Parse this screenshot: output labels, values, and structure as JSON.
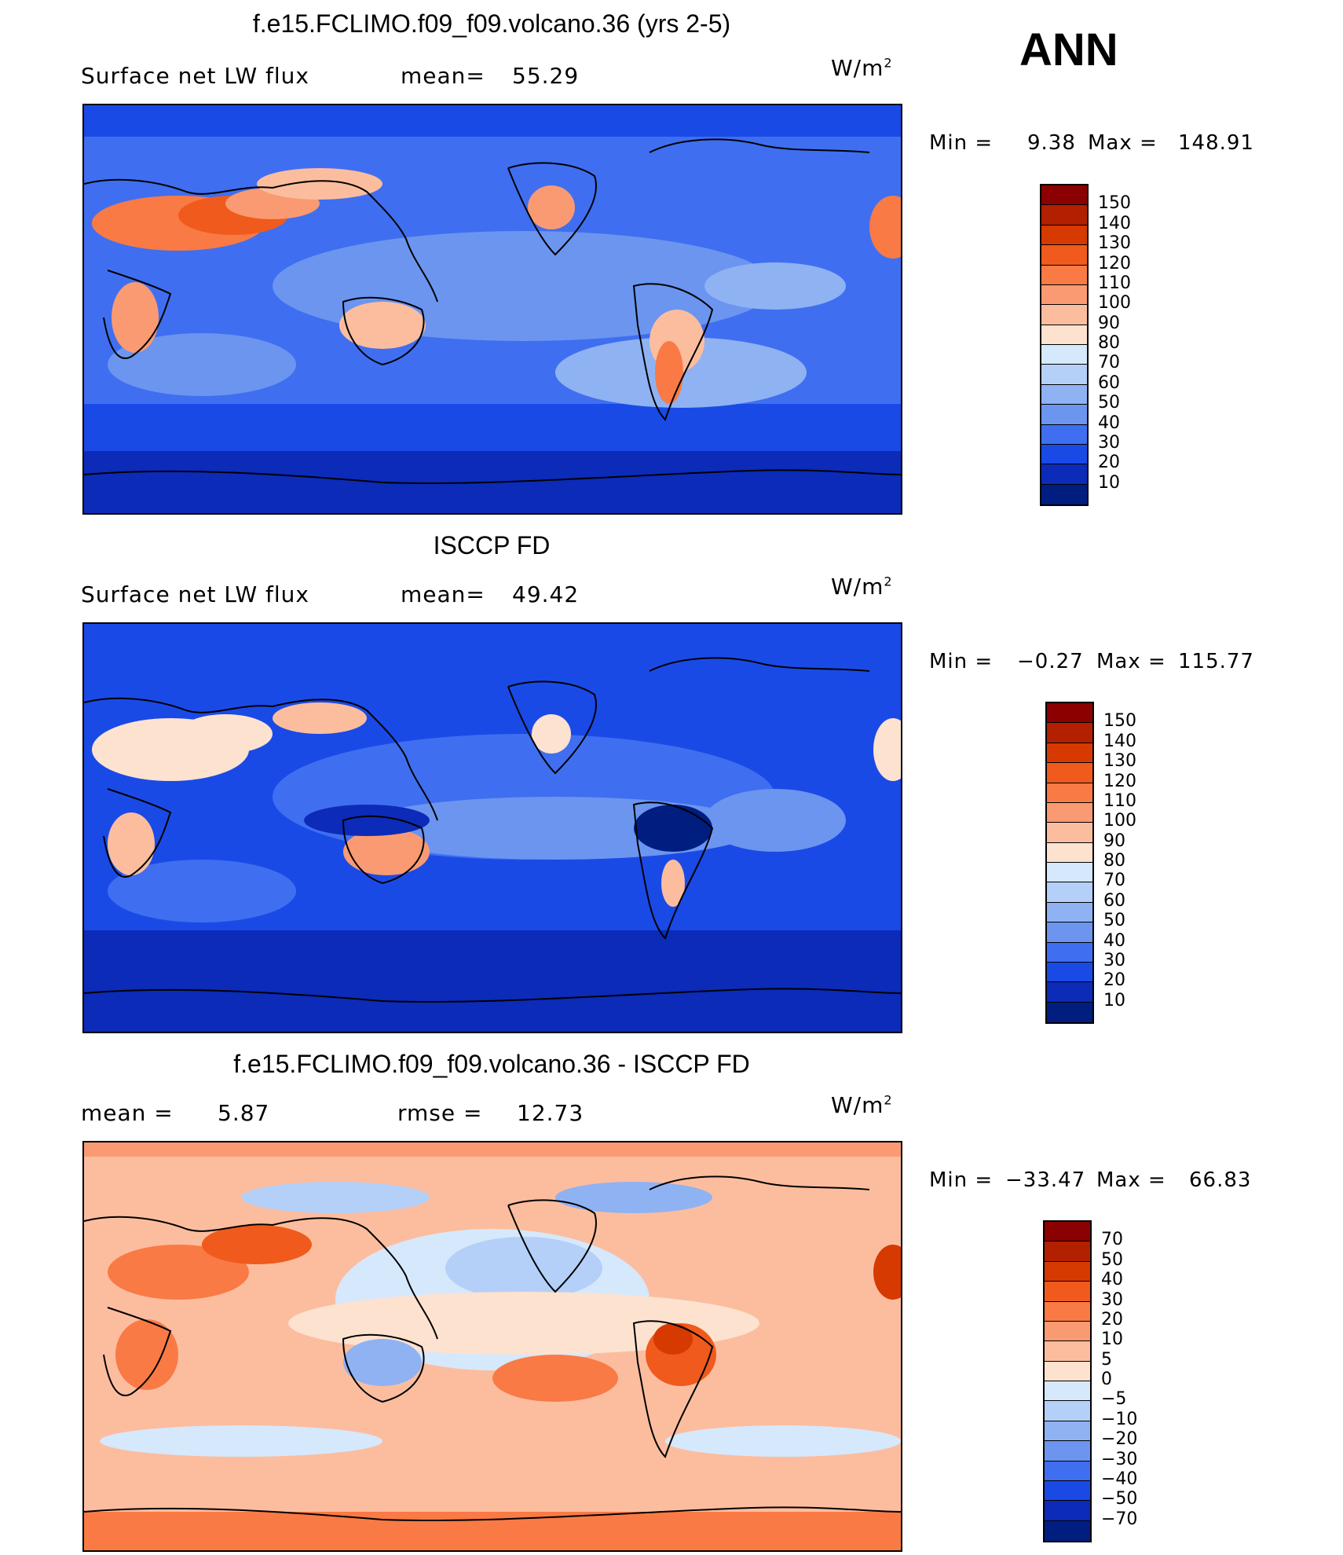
{
  "season": "ANN",
  "panels": [
    {
      "title": "f.e15.FCLIMO.f09_f09.volcano.36 (yrs 2-5)",
      "left_label": "Surface net LW flux",
      "mid_label": "mean=",
      "mid_value": "55.29",
      "unit": "W/m",
      "unit_exp": "2",
      "minmax": {
        "min_label": "Min =",
        "min": "9.38",
        "max_label": "Max =",
        "max": "148.91"
      },
      "colorbar_labels": [
        "150",
        "140",
        "130",
        "120",
        "110",
        "100",
        "90",
        "80",
        "70",
        "60",
        "50",
        "40",
        "30",
        "20",
        "10"
      ],
      "colors": [
        "#8b0000",
        "#b22000",
        "#d63a00",
        "#f05a1c",
        "#f97a45",
        "#fa9a72",
        "#fcbd9f",
        "#fde2d0",
        "#d6e8fb",
        "#b4d0f8",
        "#8fb2f3",
        "#6b95ef",
        "#3f6ff0",
        "#1a4ae6",
        "#0b2bb8",
        "#001e80"
      ]
    },
    {
      "title": "ISCCP FD",
      "left_label": "Surface net LW flux",
      "mid_label": "mean=",
      "mid_value": "49.42",
      "unit": "W/m",
      "unit_exp": "2",
      "minmax": {
        "min_label": "Min =",
        "min": "−0.27",
        "max_label": "Max =",
        "max": "115.77"
      },
      "colorbar_labels": [
        "150",
        "140",
        "130",
        "120",
        "110",
        "100",
        "90",
        "80",
        "70",
        "60",
        "50",
        "40",
        "30",
        "20",
        "10"
      ],
      "colors": [
        "#8b0000",
        "#b22000",
        "#d63a00",
        "#f05a1c",
        "#f97a45",
        "#fa9a72",
        "#fcbd9f",
        "#fde2d0",
        "#d6e8fb",
        "#b4d0f8",
        "#8fb2f3",
        "#6b95ef",
        "#3f6ff0",
        "#1a4ae6",
        "#0b2bb8",
        "#001e80"
      ]
    },
    {
      "title": "f.e15.FCLIMO.f09_f09.volcano.36 - ISCCP FD",
      "left_label": "mean =",
      "left_value": "5.87",
      "mid_label": "rmse =",
      "mid_value": "12.73",
      "unit": "W/m",
      "unit_exp": "2",
      "minmax": {
        "min_label": "Min =",
        "min": "−33.47",
        "max_label": "Max =",
        "max": "66.83"
      },
      "colorbar_labels": [
        "70",
        "50",
        "40",
        "30",
        "20",
        "10",
        "5",
        "0",
        "−5",
        "−10",
        "−20",
        "−30",
        "−40",
        "−50",
        "−70"
      ],
      "colors": [
        "#8b0000",
        "#b22000",
        "#d63a00",
        "#f05a1c",
        "#f97a45",
        "#fa9a72",
        "#fcbd9f",
        "#fde2d0",
        "#d6e8fb",
        "#b4d0f8",
        "#8fb2f3",
        "#6b95ef",
        "#3f6ff0",
        "#1a4ae6",
        "#0b2bb8",
        "#001e80"
      ]
    }
  ]
}
